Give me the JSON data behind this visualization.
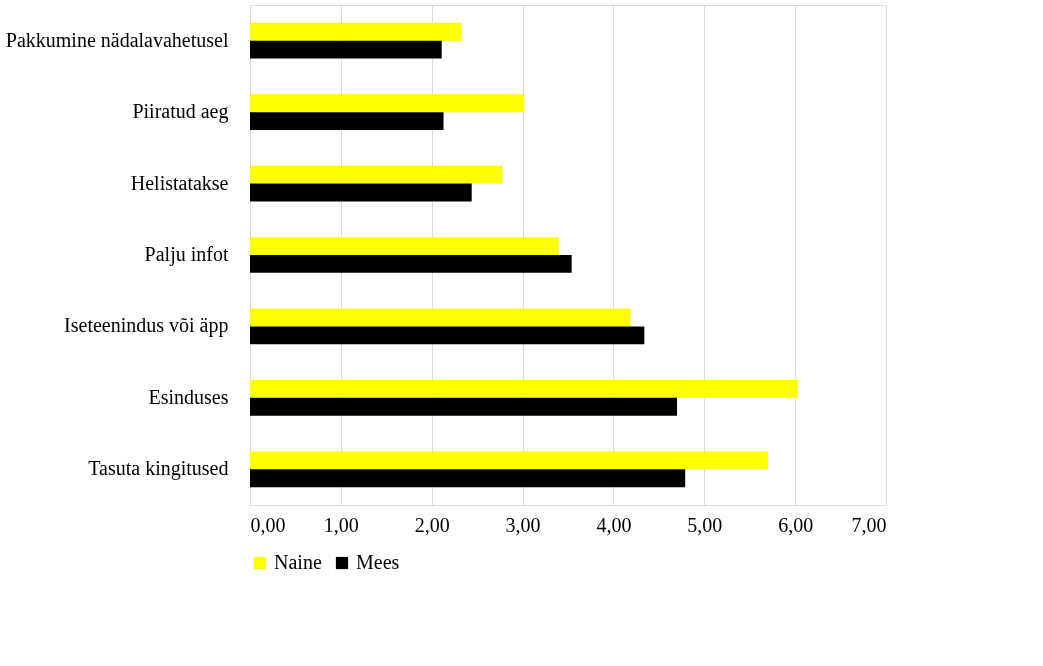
{
  "chart_data": {
    "type": "bar",
    "orientation": "horizontal",
    "categories": [
      "Pakkumine nädalavahetusel",
      "Piiratud aeg",
      "Helistatakse",
      "Palju infot",
      "Iseteenindus või äpp",
      "Esinduses",
      "Tasuta kingitused"
    ],
    "series": [
      {
        "name": "Naine",
        "color": "#ffff00",
        "values": [
          2.33,
          3.02,
          2.78,
          3.4,
          4.19,
          6.03,
          5.7
        ]
      },
      {
        "name": "Mees",
        "color": "#000000",
        "values": [
          2.11,
          2.13,
          2.44,
          3.54,
          4.34,
          4.7,
          4.79
        ]
      }
    ],
    "xlim": [
      0,
      7
    ],
    "xticks": [
      {
        "value": 0,
        "label": "0,00"
      },
      {
        "value": 1,
        "label": "1,00"
      },
      {
        "value": 2,
        "label": "2,00"
      },
      {
        "value": 3,
        "label": "3,00"
      },
      {
        "value": 4,
        "label": "4,00"
      },
      {
        "value": 5,
        "label": "5,00"
      },
      {
        "value": 6,
        "label": "6,00"
      },
      {
        "value": 7,
        "label": "7,00"
      }
    ],
    "grid": "x",
    "legend": "bottom"
  }
}
